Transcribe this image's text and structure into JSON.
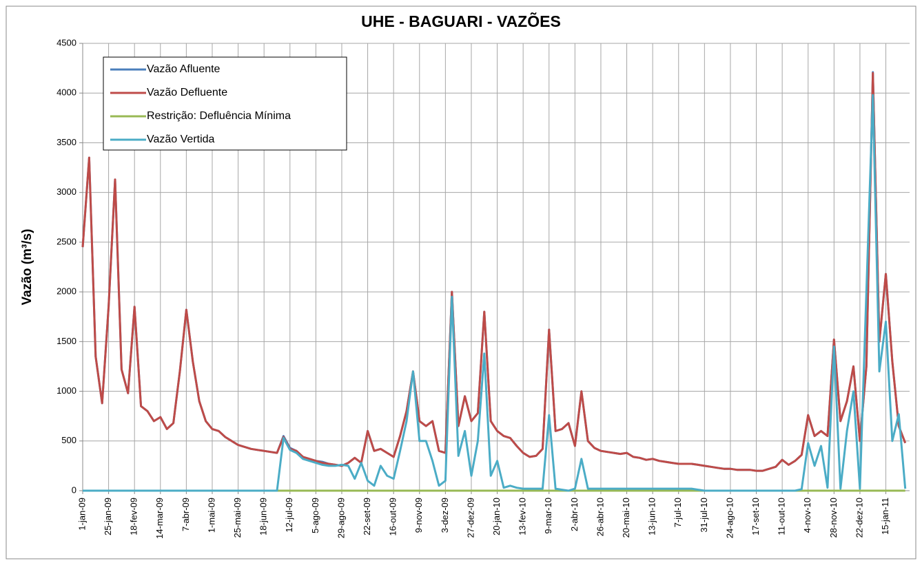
{
  "chart_data": {
    "type": "line",
    "title": "UHE - BAGUARI - VAZÕES",
    "y_label": "Vazão (m³/s)",
    "x": [
      "2009-01-01",
      "2009-01-07",
      "2009-01-13",
      "2009-01-19",
      "2009-01-25",
      "2009-01-31",
      "2009-02-06",
      "2009-02-12",
      "2009-02-18",
      "2009-02-24",
      "2009-03-02",
      "2009-03-08",
      "2009-03-14",
      "2009-03-20",
      "2009-03-26",
      "2009-04-01",
      "2009-04-07",
      "2009-04-13",
      "2009-04-19",
      "2009-04-25",
      "2009-05-01",
      "2009-05-07",
      "2009-05-13",
      "2009-05-19",
      "2009-05-25",
      "2009-05-31",
      "2009-06-06",
      "2009-06-12",
      "2009-06-18",
      "2009-06-24",
      "2009-06-30",
      "2009-07-06",
      "2009-07-12",
      "2009-07-18",
      "2009-07-24",
      "2009-07-30",
      "2009-08-05",
      "2009-08-11",
      "2009-08-17",
      "2009-08-23",
      "2009-08-29",
      "2009-09-04",
      "2009-09-10",
      "2009-09-16",
      "2009-09-22",
      "2009-09-28",
      "2009-10-04",
      "2009-10-10",
      "2009-10-16",
      "2009-10-22",
      "2009-10-28",
      "2009-11-03",
      "2009-11-09",
      "2009-11-15",
      "2009-11-21",
      "2009-11-27",
      "2009-12-03",
      "2009-12-09",
      "2009-12-15",
      "2009-12-21",
      "2009-12-27",
      "2010-01-02",
      "2010-01-08",
      "2010-01-14",
      "2010-01-20",
      "2010-01-26",
      "2010-02-01",
      "2010-02-07",
      "2010-02-13",
      "2010-02-19",
      "2010-02-25",
      "2010-03-03",
      "2010-03-09",
      "2010-03-15",
      "2010-03-21",
      "2010-03-27",
      "2010-04-02",
      "2010-04-08",
      "2010-04-14",
      "2010-04-20",
      "2010-04-26",
      "2010-05-02",
      "2010-05-08",
      "2010-05-14",
      "2010-05-20",
      "2010-05-26",
      "2010-06-01",
      "2010-06-07",
      "2010-06-13",
      "2010-06-19",
      "2010-06-25",
      "2010-07-01",
      "2010-07-07",
      "2010-07-13",
      "2010-07-19",
      "2010-07-25",
      "2010-07-31",
      "2010-08-06",
      "2010-08-12",
      "2010-08-18",
      "2010-08-24",
      "2010-08-30",
      "2010-09-05",
      "2010-09-11",
      "2010-09-17",
      "2010-09-23",
      "2010-09-29",
      "2010-10-05",
      "2010-10-11",
      "2010-10-17",
      "2010-10-23",
      "2010-10-29",
      "2010-11-04",
      "2010-11-10",
      "2010-11-16",
      "2010-11-22",
      "2010-11-28",
      "2010-12-04",
      "2010-12-10",
      "2010-12-16",
      "2010-12-22",
      "2010-12-28",
      "2011-01-03",
      "2011-01-09",
      "2011-01-15",
      "2011-01-21",
      "2011-01-27",
      "2011-02-02"
    ],
    "series": [
      {
        "name": "Vazão Afluente",
        "color": "#4a7ebb",
        "values": [
          2450,
          3350,
          1350,
          880,
          1850,
          3130,
          1220,
          980,
          1850,
          850,
          800,
          700,
          740,
          620,
          680,
          1200,
          1820,
          1300,
          900,
          700,
          620,
          600,
          540,
          500,
          460,
          440,
          420,
          410,
          400,
          390,
          380,
          550,
          430,
          400,
          340,
          320,
          300,
          290,
          270,
          260,
          250,
          280,
          330,
          280,
          600,
          400,
          420,
          380,
          340,
          550,
          800,
          1200,
          700,
          650,
          700,
          400,
          380,
          2000,
          650,
          950,
          700,
          780,
          1800,
          700,
          600,
          550,
          530,
          450,
          380,
          340,
          350,
          420,
          1620,
          600,
          620,
          680,
          450,
          1000,
          500,
          430,
          400,
          390,
          380,
          370,
          380,
          340,
          330,
          310,
          320,
          300,
          290,
          280,
          270,
          270,
          270,
          260,
          250,
          240,
          230,
          220,
          220,
          210,
          210,
          210,
          200,
          200,
          220,
          240,
          310,
          260,
          300,
          360,
          760,
          550,
          600,
          550,
          1520,
          700,
          900,
          1250,
          500,
          1250,
          4210,
          1500,
          2180,
          1300,
          650,
          480
        ]
      },
      {
        "name": "Vazão Defluente",
        "color": "#be4b48",
        "values": [
          2450,
          3350,
          1350,
          880,
          1850,
          3130,
          1220,
          980,
          1850,
          850,
          800,
          700,
          740,
          620,
          680,
          1200,
          1820,
          1300,
          900,
          700,
          620,
          600,
          540,
          500,
          460,
          440,
          420,
          410,
          400,
          390,
          380,
          540,
          420,
          400,
          340,
          320,
          300,
          280,
          270,
          260,
          250,
          280,
          330,
          280,
          600,
          400,
          420,
          380,
          340,
          550,
          800,
          1200,
          700,
          650,
          700,
          400,
          380,
          2000,
          650,
          950,
          700,
          780,
          1800,
          700,
          600,
          550,
          530,
          450,
          380,
          340,
          350,
          420,
          1620,
          600,
          620,
          680,
          450,
          1000,
          500,
          430,
          400,
          390,
          380,
          370,
          380,
          340,
          330,
          310,
          320,
          300,
          290,
          280,
          270,
          270,
          270,
          260,
          250,
          240,
          230,
          220,
          220,
          210,
          210,
          210,
          200,
          200,
          220,
          240,
          310,
          260,
          300,
          360,
          760,
          550,
          600,
          550,
          1520,
          700,
          900,
          1250,
          500,
          1250,
          4200,
          1500,
          2180,
          1300,
          650,
          480
        ]
      },
      {
        "name": "Restrição: Defluência Mínima",
        "color": "#98b954",
        "values": [
          0,
          0,
          0,
          0,
          0,
          0,
          0,
          0,
          0,
          0,
          0,
          0,
          0,
          0,
          0,
          0,
          0,
          0,
          0,
          0,
          0,
          0,
          0,
          0,
          0,
          0,
          0,
          0,
          0,
          0,
          0,
          0,
          0,
          0,
          0,
          0,
          0,
          0,
          0,
          0,
          0,
          0,
          0,
          0,
          0,
          0,
          0,
          0,
          0,
          0,
          0,
          0,
          0,
          0,
          0,
          0,
          0,
          0,
          0,
          0,
          0,
          0,
          0,
          0,
          0,
          0,
          0,
          0,
          0,
          0,
          0,
          0,
          0,
          0,
          0,
          0,
          0,
          0,
          0,
          0,
          0,
          0,
          0,
          0,
          0,
          0,
          0,
          0,
          0,
          0,
          0,
          0,
          0,
          0,
          0,
          0,
          0,
          0,
          0,
          0,
          0,
          0,
          0,
          0,
          0,
          0,
          0,
          0,
          0,
          0,
          0,
          0,
          0,
          0,
          0,
          0,
          0,
          0,
          0,
          0,
          0,
          0,
          0,
          0,
          0,
          0,
          0,
          0
        ]
      },
      {
        "name": "Vazão Vertida",
        "color": "#4bacc6",
        "values": [
          0,
          0,
          0,
          0,
          0,
          0,
          0,
          0,
          0,
          0,
          0,
          0,
          0,
          0,
          0,
          0,
          0,
          0,
          0,
          0,
          0,
          0,
          0,
          0,
          0,
          0,
          0,
          0,
          0,
          0,
          0,
          530,
          410,
          380,
          320,
          300,
          280,
          260,
          250,
          250,
          260,
          250,
          120,
          280,
          100,
          50,
          250,
          150,
          120,
          400,
          700,
          1200,
          500,
          500,
          300,
          50,
          100,
          1950,
          350,
          600,
          150,
          500,
          1380,
          150,
          300,
          30,
          50,
          30,
          20,
          20,
          20,
          20,
          760,
          20,
          10,
          0,
          20,
          320,
          20,
          20,
          20,
          20,
          20,
          20,
          20,
          20,
          20,
          20,
          20,
          20,
          20,
          20,
          20,
          20,
          20,
          10,
          0,
          0,
          0,
          0,
          0,
          0,
          0,
          0,
          0,
          0,
          0,
          0,
          0,
          0,
          0,
          15,
          480,
          250,
          450,
          30,
          1450,
          20,
          600,
          1000,
          20,
          2000,
          3980,
          1200,
          1700,
          500,
          770,
          20
        ]
      }
    ],
    "xlim": [
      "2009-01-01",
      "2011-02-06"
    ],
    "xticks": [
      {
        "value": "2009-01-01",
        "label": "1-jan-09"
      },
      {
        "value": "2009-01-25",
        "label": "25-jan-09"
      },
      {
        "value": "2009-02-18",
        "label": "18-fev-09"
      },
      {
        "value": "2009-03-14",
        "label": "14-mar-09"
      },
      {
        "value": "2009-04-07",
        "label": "7-abr-09"
      },
      {
        "value": "2009-05-01",
        "label": "1-mai-09"
      },
      {
        "value": "2009-05-25",
        "label": "25-mai-09"
      },
      {
        "value": "2009-06-18",
        "label": "18-jun-09"
      },
      {
        "value": "2009-07-12",
        "label": "12-jul-09"
      },
      {
        "value": "2009-08-05",
        "label": "5-ago-09"
      },
      {
        "value": "2009-08-29",
        "label": "29-ago-09"
      },
      {
        "value": "2009-09-22",
        "label": "22-set-09"
      },
      {
        "value": "2009-10-16",
        "label": "16-out-09"
      },
      {
        "value": "2009-11-09",
        "label": "9-nov-09"
      },
      {
        "value": "2009-12-03",
        "label": "3-dez-09"
      },
      {
        "value": "2009-12-27",
        "label": "27-dez-09"
      },
      {
        "value": "2010-01-20",
        "label": "20-jan-10"
      },
      {
        "value": "2010-02-13",
        "label": "13-fev-10"
      },
      {
        "value": "2010-03-09",
        "label": "9-mar-10"
      },
      {
        "value": "2010-04-02",
        "label": "2-abr-10"
      },
      {
        "value": "2010-04-26",
        "label": "26-abr-10"
      },
      {
        "value": "2010-05-20",
        "label": "20-mai-10"
      },
      {
        "value": "2010-06-13",
        "label": "13-jun-10"
      },
      {
        "value": "2010-07-07",
        "label": "7-jul-10"
      },
      {
        "value": "2010-07-31",
        "label": "31-jul-10"
      },
      {
        "value": "2010-08-24",
        "label": "24-ago-10"
      },
      {
        "value": "2010-09-17",
        "label": "17-set-10"
      },
      {
        "value": "2010-10-11",
        "label": "11-out-10"
      },
      {
        "value": "2010-11-04",
        "label": "4-nov-10"
      },
      {
        "value": "2010-11-28",
        "label": "28-nov-10"
      },
      {
        "value": "2010-12-22",
        "label": "22-dez-10"
      },
      {
        "value": "2011-01-15",
        "label": "15-jan-11"
      }
    ],
    "ylim": [
      0,
      4500
    ],
    "yticks": [
      0,
      500,
      1000,
      1500,
      2000,
      2500,
      3000,
      3500,
      4000,
      4500
    ],
    "grid": true,
    "legend": "upper-left"
  }
}
